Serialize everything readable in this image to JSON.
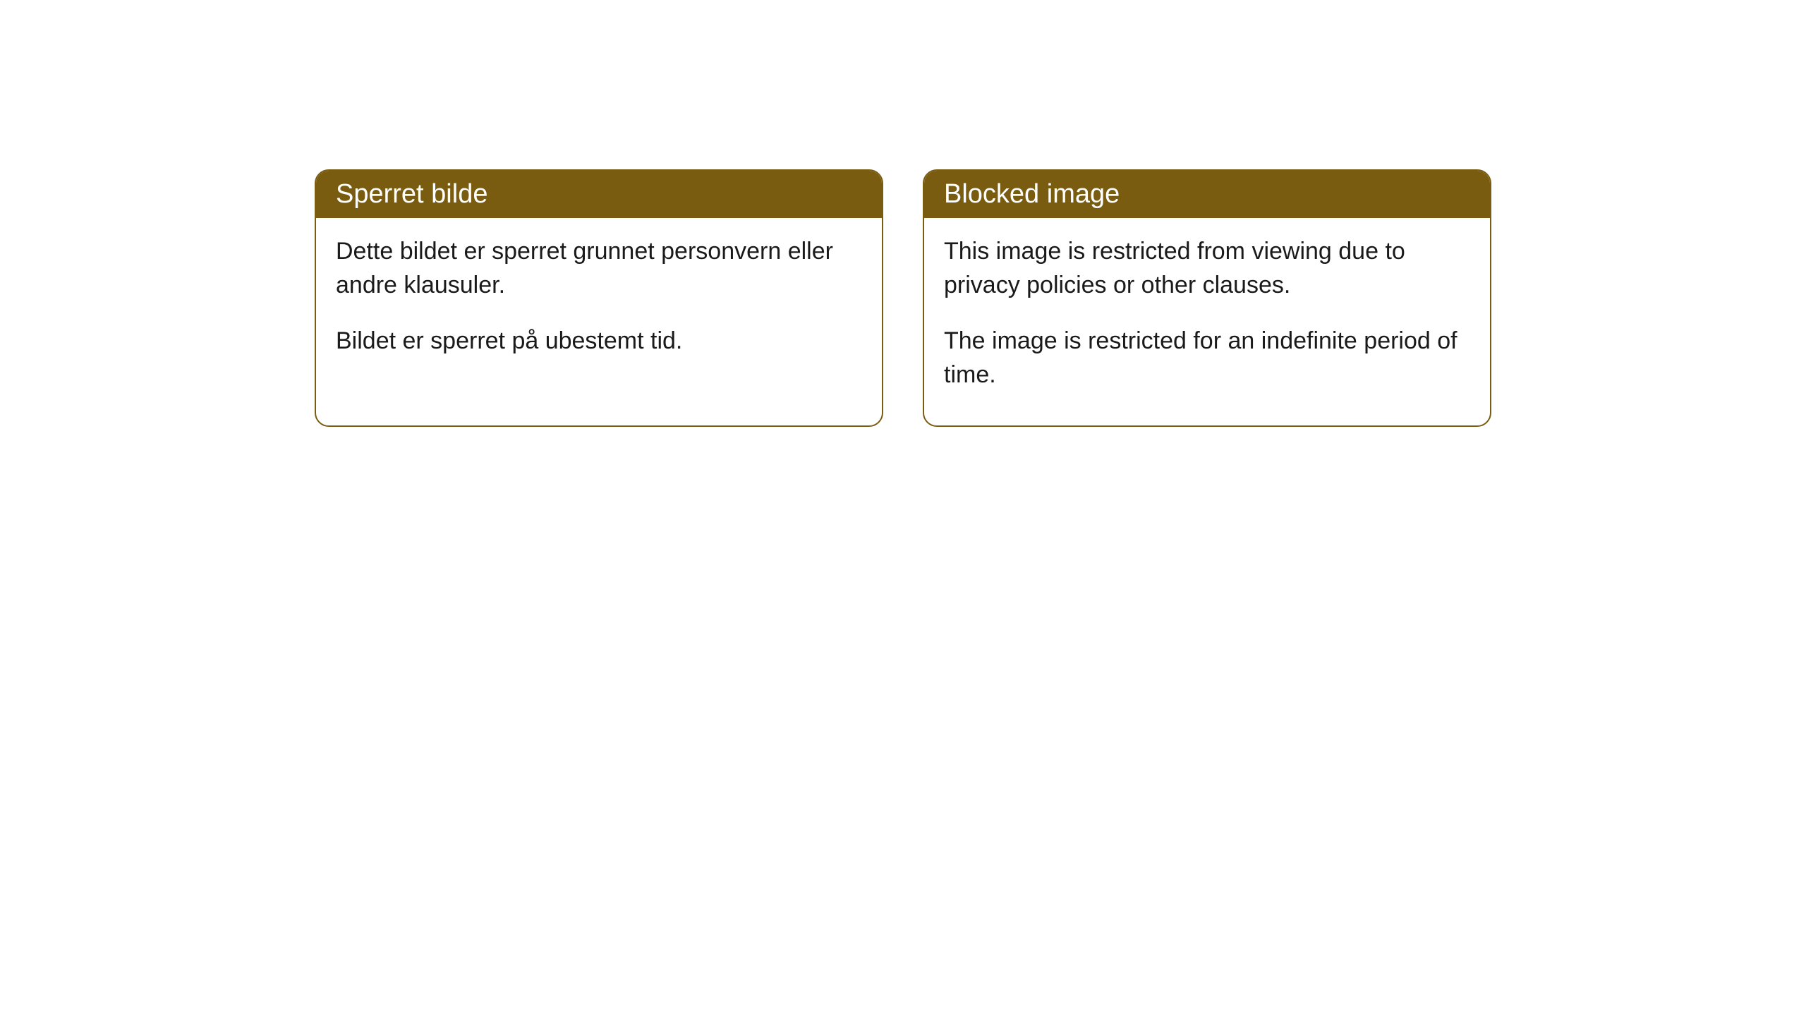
{
  "cards": {
    "norwegian": {
      "title": "Sperret bilde",
      "paragraph1": "Dette bildet er sperret grunnet personvern eller andre klausuler.",
      "paragraph2": "Bildet er sperret på ubestemt tid."
    },
    "english": {
      "title": "Blocked image",
      "paragraph1": "This image is restricted from viewing due to privacy policies or other clauses.",
      "paragraph2": "The image is restricted for an indefinite period of time."
    }
  },
  "styling": {
    "header_bg_color": "#7a5c11",
    "header_text_color": "#ffffff",
    "body_text_color": "#1a1a1a",
    "card_border_color": "#7a5c11",
    "card_bg_color": "#ffffff",
    "page_bg_color": "#ffffff",
    "border_radius": "20px",
    "title_fontsize": 38,
    "body_fontsize": 34
  }
}
